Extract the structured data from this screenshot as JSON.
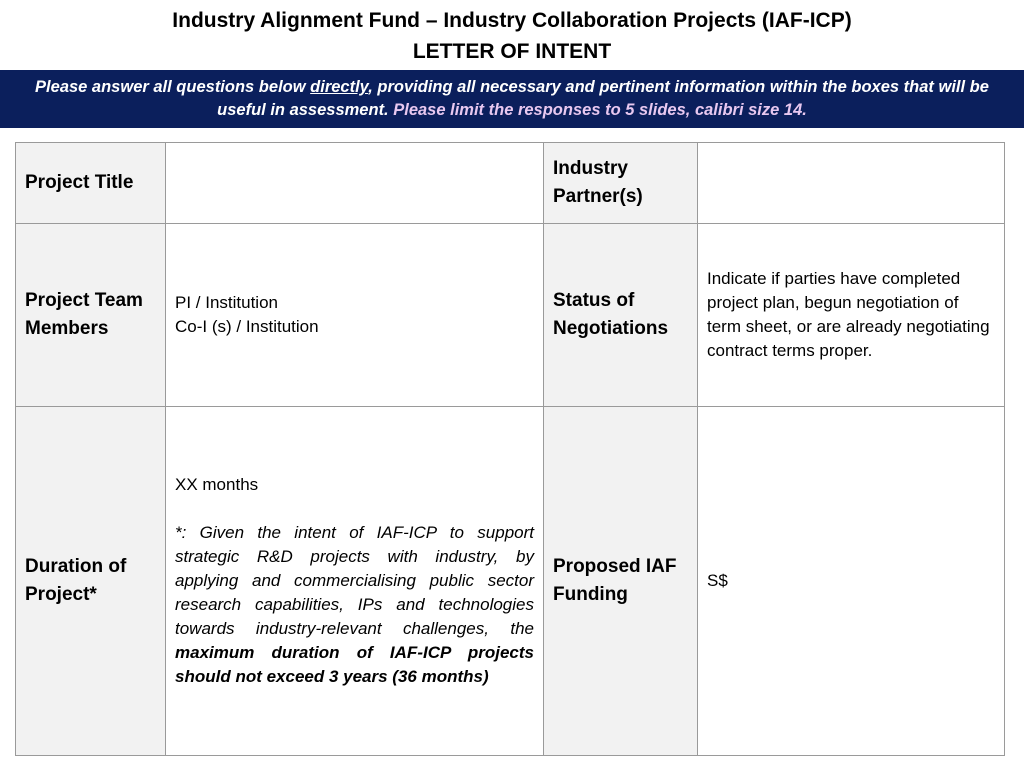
{
  "header": {
    "title": "Industry Alignment Fund – Industry Collaboration Projects (IAF-ICP)",
    "subtitle": "LETTER OF INTENT"
  },
  "banner": {
    "part1": "Please answer all questions below ",
    "emphasis": "directly",
    "part2": ", providing all necessary and pertinent information within the boxes that will be useful in assessment. ",
    "highlight": "Please limit the responses to 5 slides, calibri size 14."
  },
  "form": {
    "project_title_label": "Project Title",
    "project_title_value": "",
    "industry_partner_label": "Industry Partner(s)",
    "industry_partner_value": "",
    "team_label": "Project Team Members",
    "team_line1": "PI / Institution",
    "team_line2": "Co-I (s) / Institution",
    "negotiation_label": "Status of Negotiations",
    "negotiation_value": "Indicate if parties have completed project plan, begun negotiation of term sheet, or are already negotiating contract terms proper.",
    "duration_label": "Duration of Project*",
    "duration_value": "XX months",
    "duration_note": "*: Given the intent of IAF-ICP to support strategic R&D projects with industry, by applying and commercialising public sector research capabilities, IPs and technologies towards industry-relevant challenges, the ",
    "duration_note_bold": "maximum duration of IAF-ICP projects should not exceed 3 years (36 months)",
    "funding_label": "Proposed IAF Funding",
    "funding_value": "S$"
  }
}
